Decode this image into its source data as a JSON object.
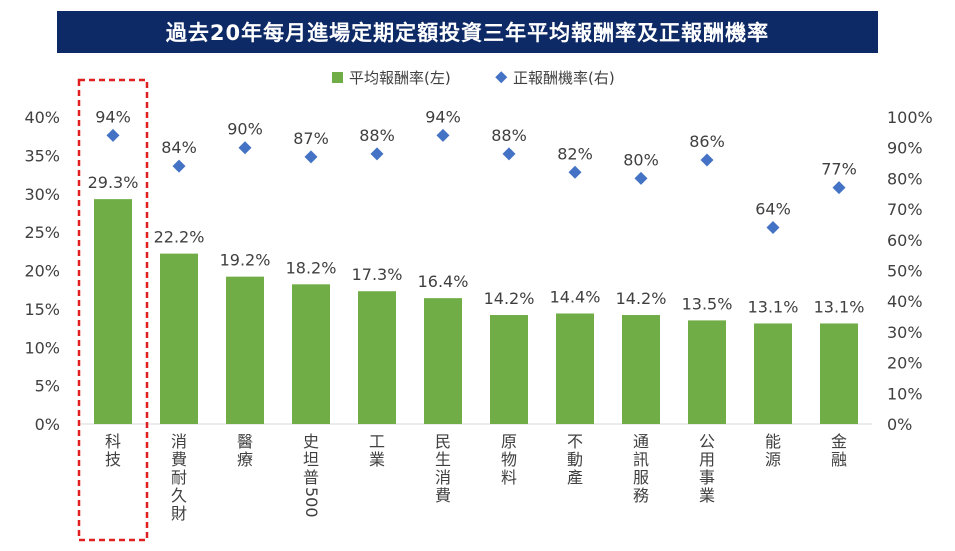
{
  "chart_data": {
    "type": "bar",
    "title": "過去20年每月進場定期定額投資三年平均報酬率及正報酬機率",
    "categories": [
      "科技",
      "消費耐久財",
      "醫療",
      "史坦普500",
      "工業",
      "民生消費",
      "原物料",
      "不動產",
      "通訊服務",
      "公用事業",
      "能源",
      "金融"
    ],
    "category_labels": [
      [
        "科",
        "技"
      ],
      [
        "消",
        "費",
        "耐",
        "久",
        "財"
      ],
      [
        "醫",
        "療"
      ],
      [
        "史",
        "坦",
        "普",
        "500"
      ],
      [
        "工",
        "業"
      ],
      [
        "民",
        "生",
        "消",
        "費"
      ],
      [
        "原",
        "物",
        "料"
      ],
      [
        "不",
        "動",
        "產"
      ],
      [
        "通",
        "訊",
        "服",
        "務"
      ],
      [
        "公",
        "用",
        "事",
        "業"
      ],
      [
        "能",
        "源"
      ],
      [
        "金",
        "融"
      ]
    ],
    "series": [
      {
        "name": "平均報酬率(左)",
        "type": "bar",
        "axis": "left",
        "color": "#70ad47",
        "values": [
          29.3,
          22.2,
          19.2,
          18.2,
          17.3,
          16.4,
          14.2,
          14.4,
          14.2,
          13.5,
          13.1,
          13.1
        ],
        "labels": [
          "29.3%",
          "22.2%",
          "19.2%",
          "18.2%",
          "17.3%",
          "16.4%",
          "14.2%",
          "14.4%",
          "14.2%",
          "13.5%",
          "13.1%",
          "13.1%"
        ]
      },
      {
        "name": "正報酬機率(右)",
        "type": "scatter",
        "axis": "right",
        "color": "#4472c4",
        "marker": "diamond",
        "values": [
          94,
          84,
          90,
          87,
          88,
          94,
          88,
          82,
          80,
          86,
          64,
          77
        ],
        "labels": [
          "94%",
          "84%",
          "90%",
          "87%",
          "88%",
          "94%",
          "88%",
          "82%",
          "80%",
          "86%",
          "64%",
          "77%"
        ]
      }
    ],
    "y_left": {
      "min": 0,
      "max": 40,
      "ticks": [
        "0%",
        "5%",
        "10%",
        "15%",
        "20%",
        "25%",
        "30%",
        "35%",
        "40%"
      ]
    },
    "y_right": {
      "min": 0,
      "max": 100,
      "ticks": [
        "0%",
        "10%",
        "20%",
        "30%",
        "40%",
        "50%",
        "60%",
        "70%",
        "80%",
        "90%",
        "100%"
      ]
    },
    "legend_position": "top",
    "highlight": {
      "category": "科技",
      "style": "red dashed box",
      "color": "#e02020"
    },
    "grid": false
  }
}
